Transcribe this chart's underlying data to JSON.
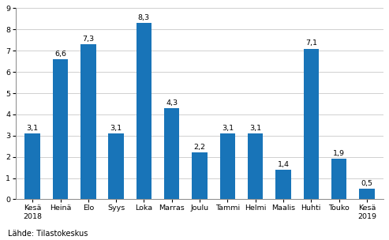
{
  "categories": [
    "Kesä\n2018",
    "Heinä",
    "Elo",
    "Syys",
    "Loka",
    "Marras",
    "Joulu",
    "Tammi",
    "Helmi",
    "Maalis",
    "Huhti",
    "Touko",
    "Kesä\n2019"
  ],
  "values": [
    3.1,
    6.6,
    7.3,
    3.1,
    8.3,
    4.3,
    2.2,
    3.1,
    3.1,
    1.4,
    7.1,
    1.9,
    0.5
  ],
  "bar_color": "#1874b8",
  "ylim": [
    0,
    9
  ],
  "yticks": [
    0,
    1,
    2,
    3,
    4,
    5,
    6,
    7,
    8,
    9
  ],
  "source_text": "Lähde: Tilastokeskus",
  "background_color": "#ffffff",
  "tick_fontsize": 6.8,
  "value_label_fontsize": 6.8,
  "source_fontsize": 7.0,
  "grid_color": "#d0d0d0",
  "bar_width": 0.55
}
